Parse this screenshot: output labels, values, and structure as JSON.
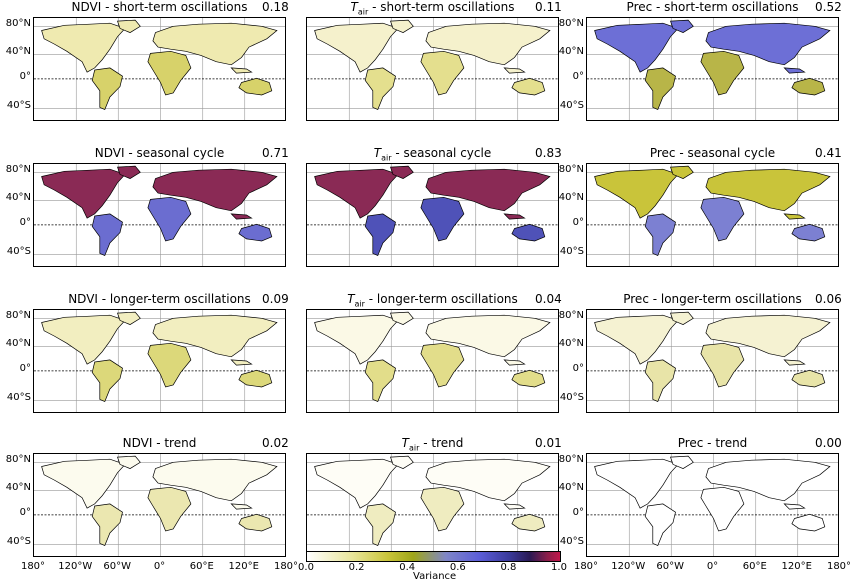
{
  "panels": [
    {
      "title": "NDVI - short-term oscillations",
      "value": "0.18",
      "fill": "#efeab0",
      "fill2": "#d7d26a"
    },
    {
      "title_var": "T",
      "title_sub": "air",
      "title_rest": " - short-term oscillations",
      "value": "0.11",
      "fill": "#f5f1cc",
      "fill2": "#e4df8e"
    },
    {
      "title": "Prec - short-term oscillations",
      "value": "0.52",
      "fill": "#6d6fd6",
      "fill2": "#b8b548"
    },
    {
      "title": "NDVI - seasonal cycle",
      "value": "0.71",
      "fill": "#8a2a55",
      "fill2": "#6b6dd0"
    },
    {
      "title_var": "T",
      "title_sub": "air",
      "title_rest": " - seasonal cycle",
      "value": "0.83",
      "fill": "#8a2a55",
      "fill2": "#4f52b8"
    },
    {
      "title": "Prec - seasonal cycle",
      "value": "0.41",
      "fill": "#c9c43a",
      "fill2": "#7c80d2"
    },
    {
      "title": "NDVI - longer-term oscillations",
      "value": "0.09",
      "fill": "#f2eec0",
      "fill2": "#dcd87a"
    },
    {
      "title_var": "T",
      "title_sub": "air",
      "title_rest": " - longer-term oscillations",
      "value": "0.04",
      "fill": "#fbf9e6",
      "fill2": "#e2dd8a"
    },
    {
      "title": "Prec - longer-term oscillations",
      "value": "0.06",
      "fill": "#f5f2d2",
      "fill2": "#e8e4a8"
    },
    {
      "title": "NDVI - trend",
      "value": "0.02",
      "fill": "#fcfbee",
      "fill2": "#ebe7b0"
    },
    {
      "title_var": "T",
      "title_sub": "air",
      "title_rest": " - trend",
      "value": "0.01",
      "fill": "#fefdf6",
      "fill2": "#efecc0"
    },
    {
      "title": "Prec - trend",
      "value": "0.00",
      "fill": "#ffffff",
      "fill2": "#ffffff"
    }
  ],
  "lat_labels": [
    "80°N",
    "40°N",
    "0°",
    "40°S"
  ],
  "lon_labels": [
    "180°",
    "120°W",
    "60°W",
    "0°",
    "60°E",
    "120°E",
    "180°"
  ],
  "colorbar": {
    "ticks": [
      "0.0",
      "0.2",
      "0.4",
      "0.6",
      "0.8",
      "1.0"
    ],
    "label": "Variance"
  }
}
